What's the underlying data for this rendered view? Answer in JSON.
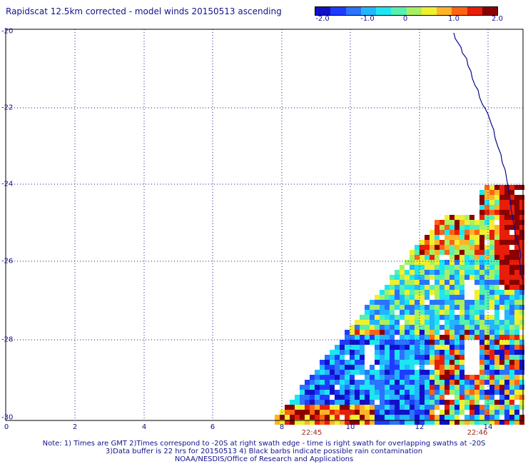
{
  "title": "Rapidscat 12.5km corrected - model winds 20150513 ascending",
  "colorbar": {
    "colors": [
      "#1010c8",
      "#1e3cff",
      "#2a74ff",
      "#22b6ff",
      "#1ee6f0",
      "#56f0b0",
      "#a8f060",
      "#f0f030",
      "#ffb428",
      "#ff6414",
      "#e81e0a",
      "#8b0000"
    ],
    "labels": [
      "-2.0",
      "-1.0",
      "0",
      "1.0",
      "2.0"
    ]
  },
  "y_axis": {
    "ticks": [
      "-20",
      "-22",
      "-24",
      "-26",
      "-28",
      "-30"
    ]
  },
  "x_axis": {
    "ticks": [
      "0",
      "2",
      "4",
      "6",
      "8",
      "10",
      "12",
      "14"
    ]
  },
  "time_labels": [
    "22:45",
    "22:46"
  ],
  "notes": [
    "Note: 1) Times are GMT 2)Times correspond to -20S at right swath edge - time is right swath for overlapping swaths at -20S",
    "3)Data buffer is 22 hrs for 20150513 4) Black barbs indicate possible rain contamination",
    "NOAA/NESDIS/Office of Research and Applications"
  ],
  "map": {
    "type": "scatterometer wind difference map",
    "colors": {
      "coastline": "#0a0a8c",
      "grid": "#1a1a8c",
      "axes": "#000000"
    }
  }
}
